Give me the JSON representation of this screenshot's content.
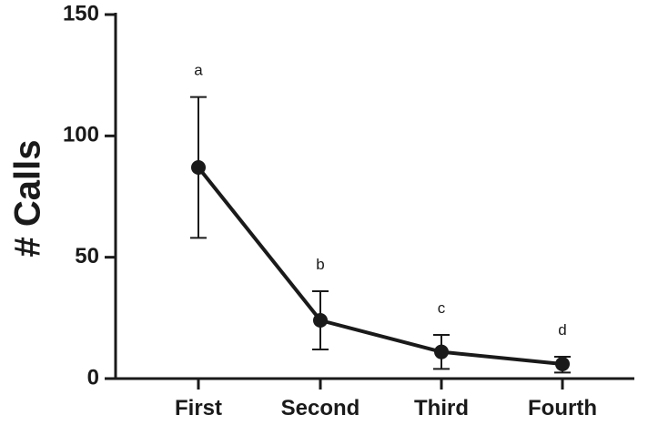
{
  "chart_data": {
    "type": "line",
    "title": "",
    "xlabel": "",
    "ylabel": "# Calls",
    "ylim": [
      0,
      150
    ],
    "yticks": [
      0,
      50,
      100,
      150
    ],
    "categories": [
      "First",
      "Second",
      "Third",
      "Fourth"
    ],
    "series": [
      {
        "values": [
          87,
          24,
          11,
          6
        ],
        "error_low": [
          58,
          12,
          4,
          2.5
        ],
        "error_high": [
          116,
          36,
          18,
          9
        ],
        "annotations": [
          "a",
          "b",
          "c",
          "d"
        ],
        "color": "#1a1a1a"
      }
    ],
    "grid": false,
    "legend": "none"
  }
}
